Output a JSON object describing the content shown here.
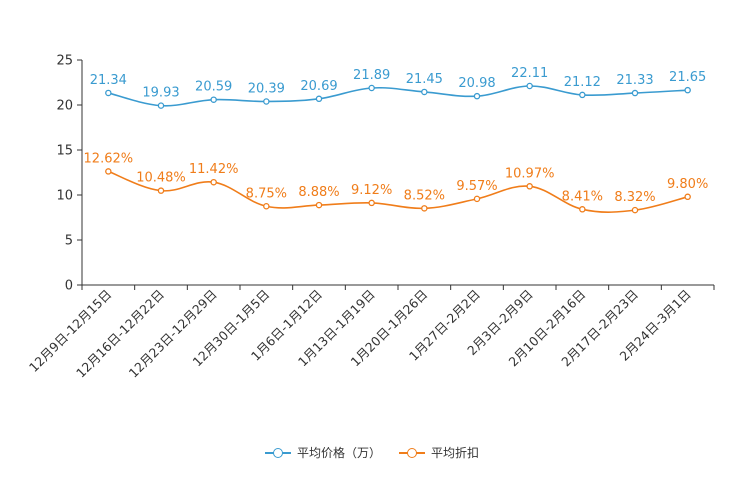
{
  "chart_data": {
    "type": "line",
    "categories": [
      "12月9日-12月15日",
      "12月16日-12月22日",
      "12月23日-12月29日",
      "12月30日-1月5日",
      "1月6日-1月12日",
      "1月13日-1月19日",
      "1月20日-1月26日",
      "1月27日-2月2日",
      "2月3日-2月9日",
      "2月10日-2月16日",
      "2月17日-2月23日",
      "2月24日-3月1日"
    ],
    "ylim": [
      0,
      25
    ],
    "yticks": [
      "0",
      "5",
      "10",
      "15",
      "20",
      "25"
    ],
    "series": [
      {
        "name": "平均价格（万）",
        "color": "#3a9bd0",
        "values": [
          21.34,
          19.93,
          20.59,
          20.39,
          20.69,
          21.89,
          21.45,
          20.98,
          22.11,
          21.12,
          21.33,
          21.65
        ],
        "labels": [
          "21.34",
          "19.93",
          "20.59",
          "20.39",
          "20.69",
          "21.89",
          "21.45",
          "20.98",
          "22.11",
          "21.12",
          "21.33",
          "21.65"
        ]
      },
      {
        "name": "平均折扣",
        "color": "#f07d1a",
        "values": [
          12.62,
          10.48,
          11.42,
          8.75,
          8.88,
          9.12,
          8.52,
          9.57,
          10.97,
          8.41,
          8.32,
          9.8
        ],
        "labels": [
          "12.62%",
          "10.48%",
          "11.42%",
          "8.75%",
          "8.88%",
          "9.12%",
          "8.52%",
          "9.57%",
          "10.97%",
          "8.41%",
          "8.32%",
          "9.80%"
        ]
      }
    ],
    "title": "",
    "xlabel": "",
    "ylabel": "",
    "legend": "bottom-center"
  }
}
